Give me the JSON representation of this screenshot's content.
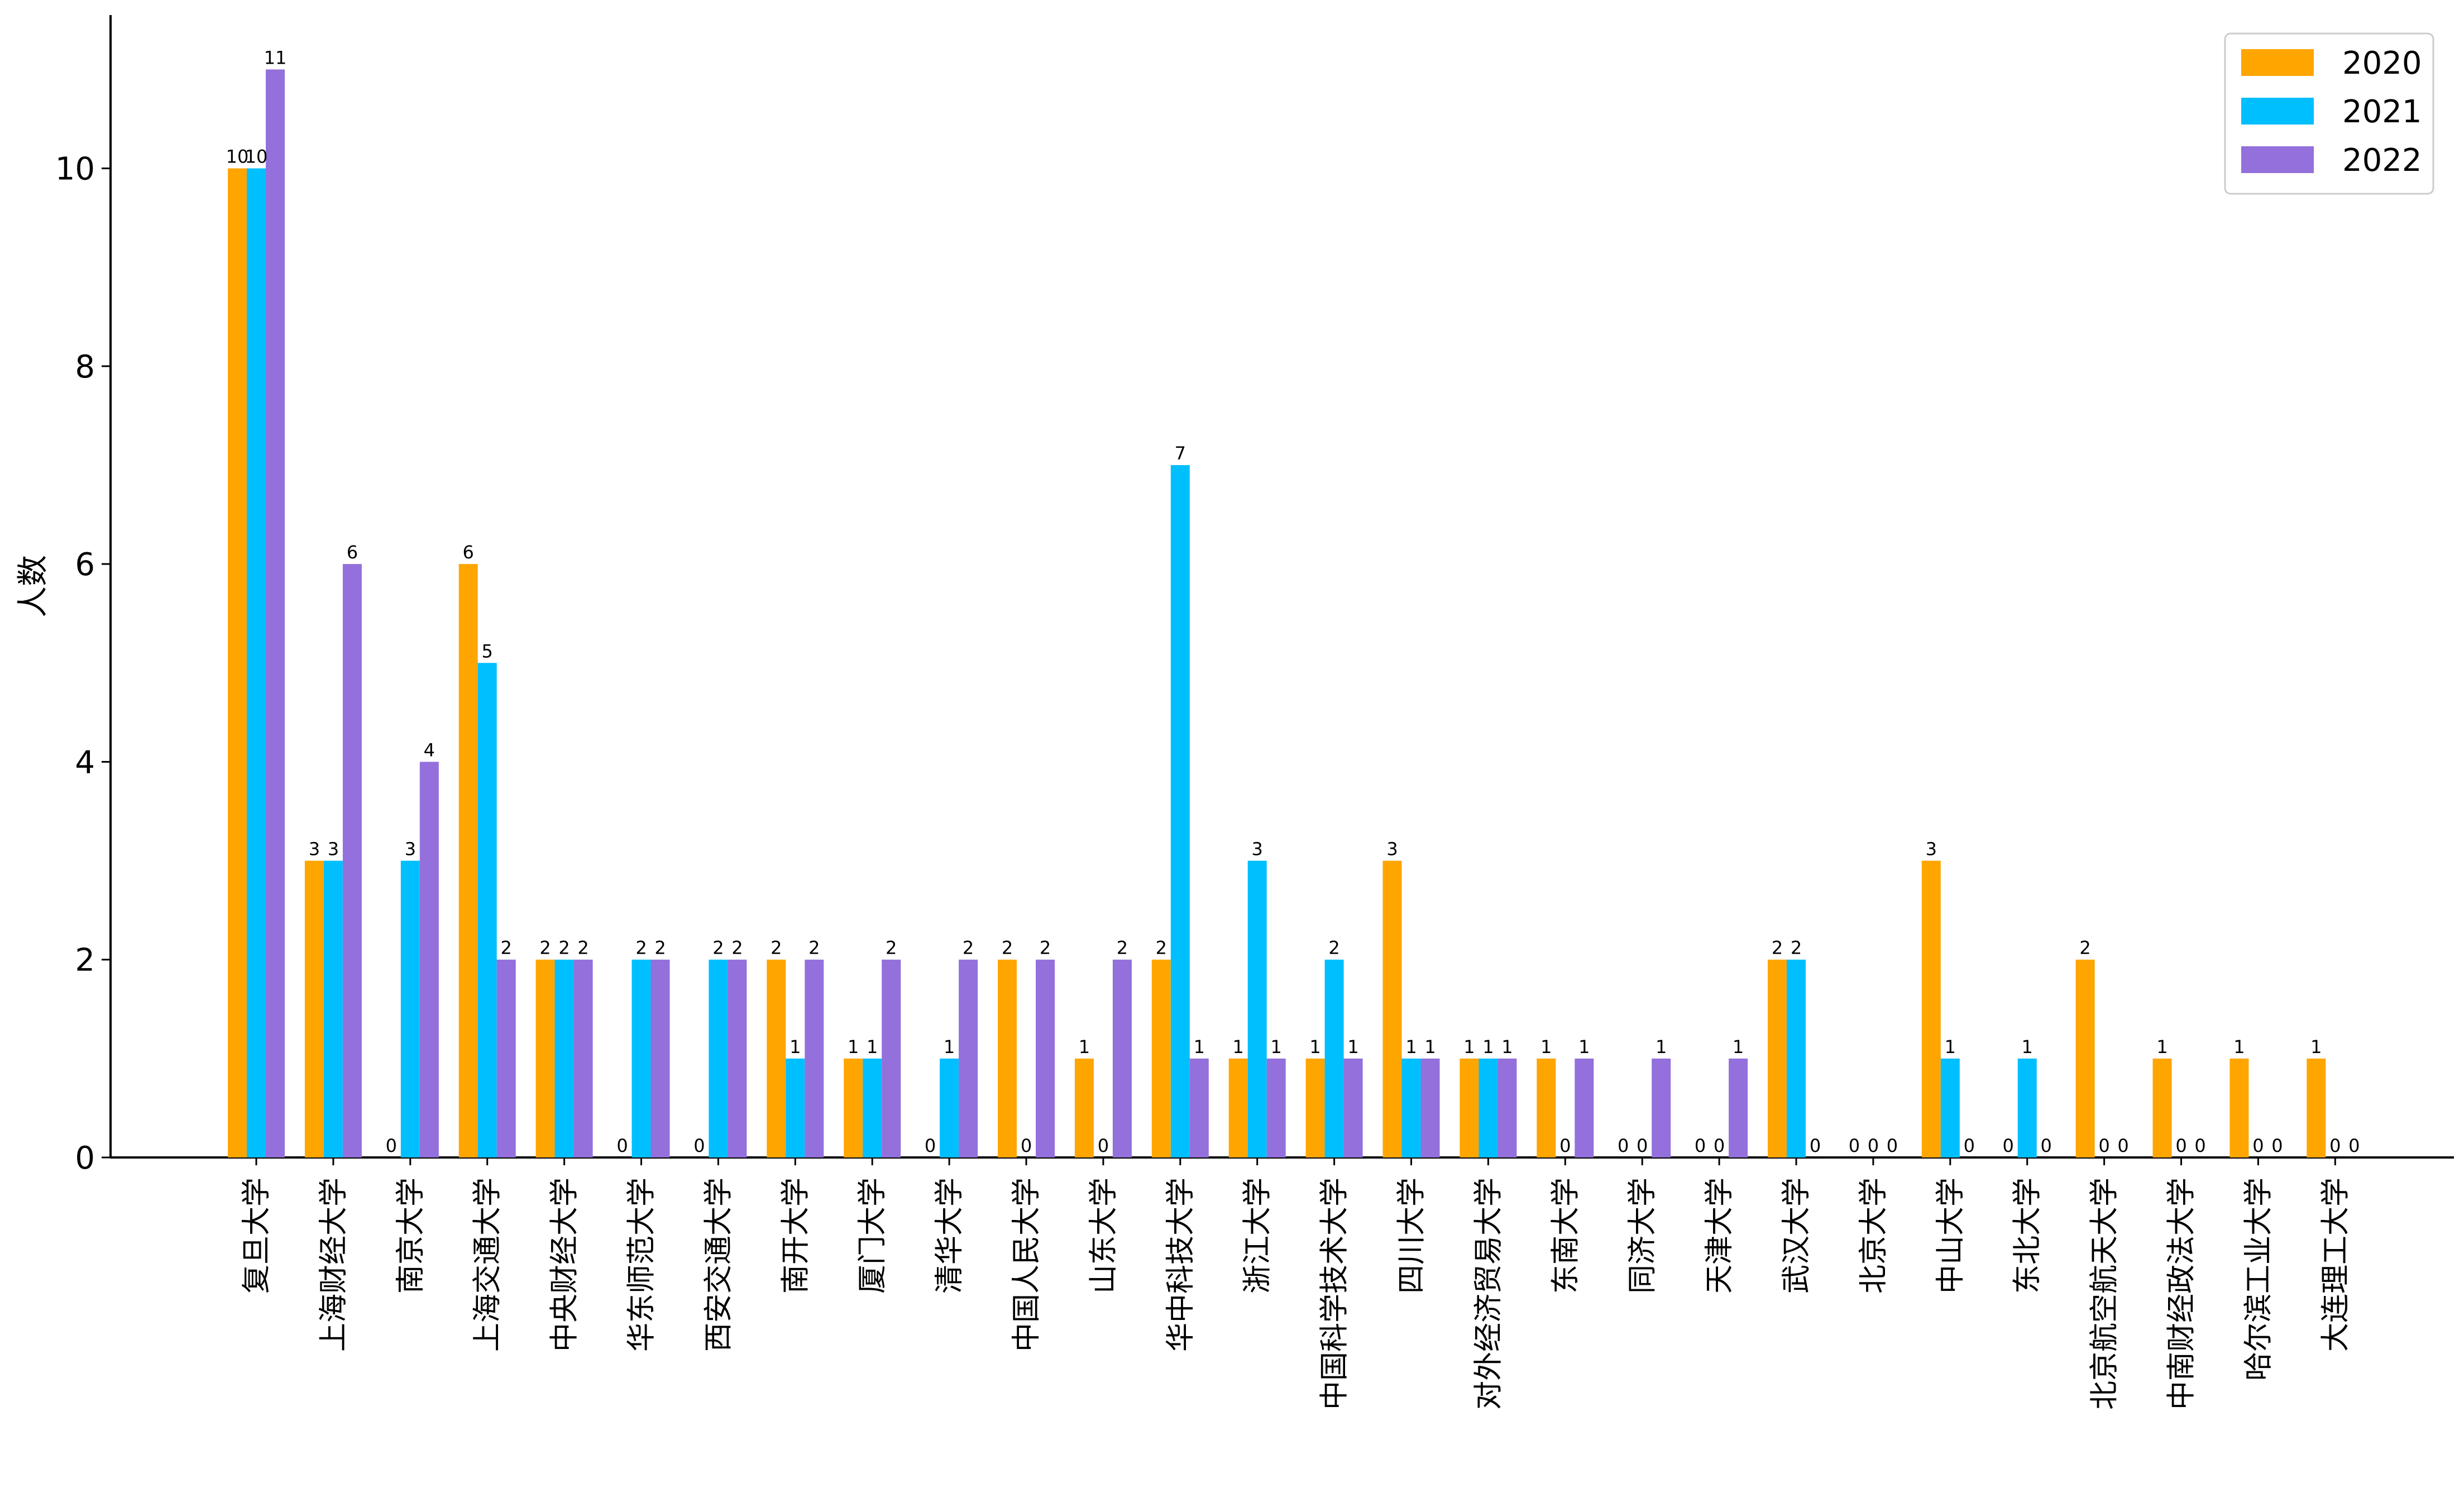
{
  "chart_data": {
    "type": "bar",
    "ylabel": "人数",
    "ylim": [
      0,
      11.55
    ],
    "yticks": [
      0,
      2,
      4,
      6,
      8,
      10
    ],
    "categories": [
      "复旦大学",
      "上海财经大学",
      "南京大学",
      "上海交通大学",
      "中央财经大学",
      "华东师范大学",
      "西安交通大学",
      "南开大学",
      "厦门大学",
      "清华大学",
      "中国人民大学",
      "山东大学",
      "华中科技大学",
      "浙江大学",
      "中国科学技术大学",
      "四川大学",
      "对外经济贸易大学",
      "东南大学",
      "同济大学",
      "天津大学",
      "武汉大学",
      "北京大学",
      "中山大学",
      "东北大学",
      "北京航空航天大学",
      "中南财经政法大学",
      "哈尔滨工业大学",
      "大连理工大学"
    ],
    "series": [
      {
        "name": "2020",
        "color": "#FFA500",
        "values": [
          10,
          3,
          0,
          6,
          2,
          0,
          0,
          2,
          1,
          0,
          2,
          1,
          2,
          1,
          1,
          3,
          1,
          1,
          0,
          0,
          2,
          0,
          3,
          0,
          2,
          1,
          1,
          1
        ]
      },
      {
        "name": "2021",
        "color": "#00BFFF",
        "values": [
          10,
          3,
          3,
          5,
          2,
          2,
          2,
          1,
          1,
          1,
          0,
          0,
          7,
          3,
          2,
          1,
          1,
          0,
          0,
          0,
          2,
          0,
          1,
          1,
          0,
          0,
          0,
          0
        ]
      },
      {
        "name": "2022",
        "color": "#9370DB",
        "values": [
          11,
          6,
          4,
          2,
          2,
          2,
          2,
          2,
          2,
          2,
          2,
          2,
          1,
          1,
          1,
          1,
          1,
          1,
          1,
          1,
          0,
          0,
          0,
          0,
          0,
          0,
          0,
          0
        ]
      }
    ],
    "legend_position": "top-right",
    "grid": false,
    "data_labels": true
  }
}
